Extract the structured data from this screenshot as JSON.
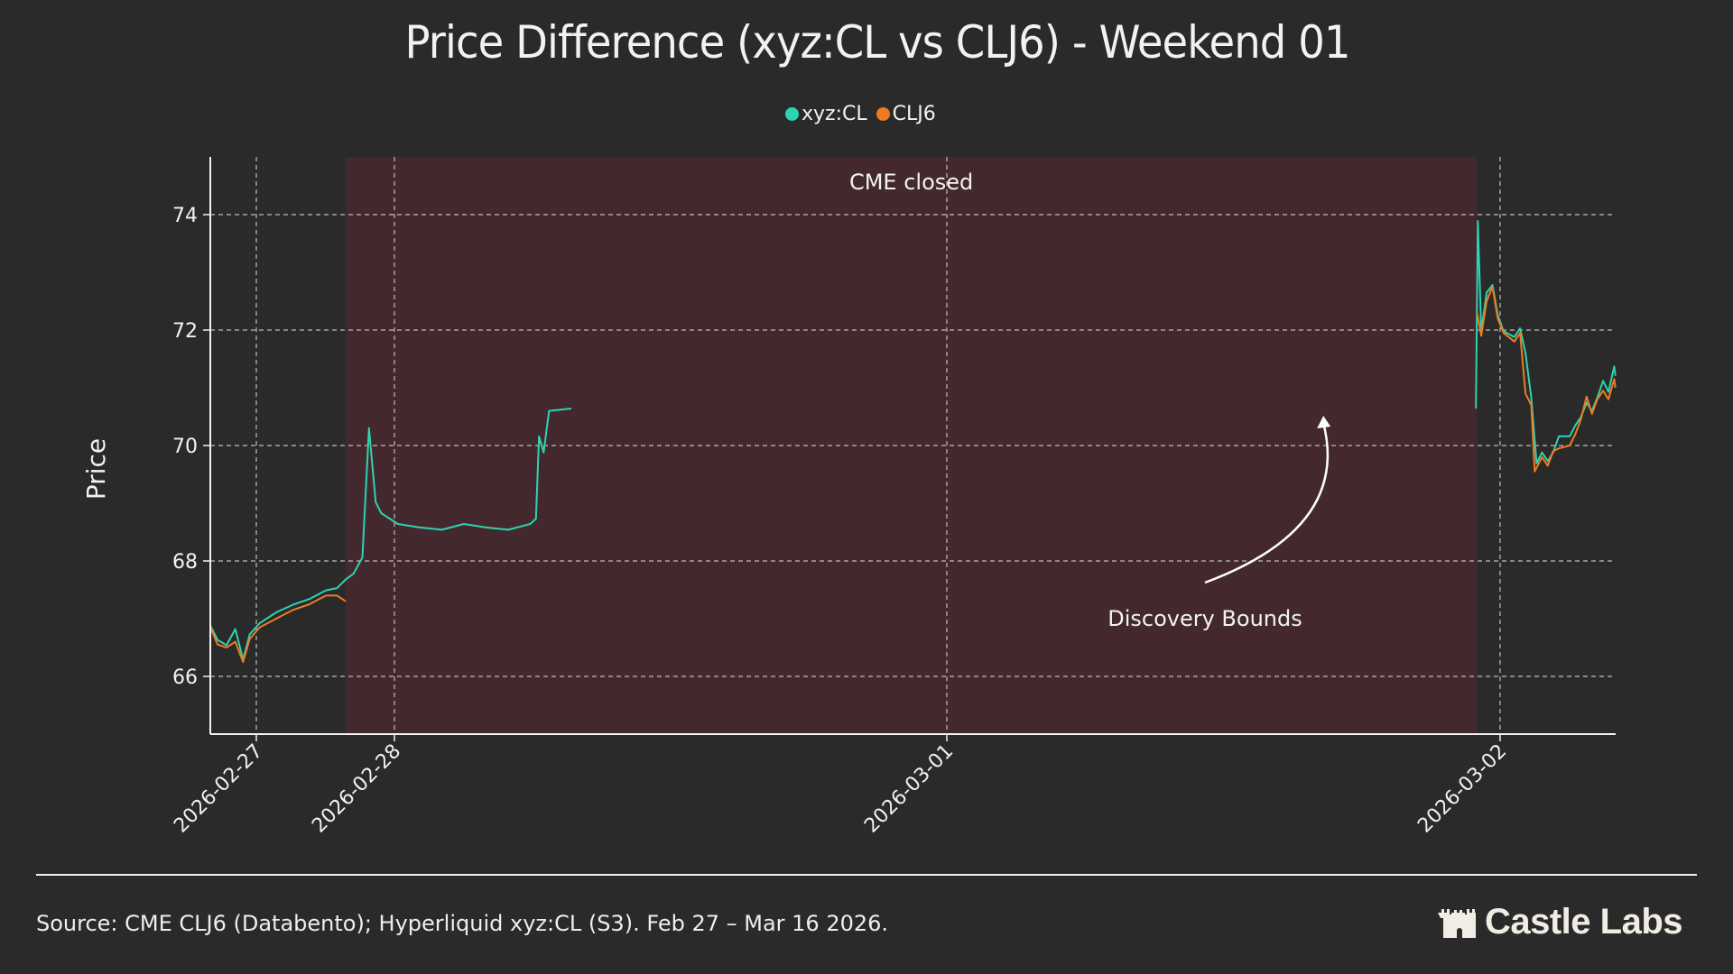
{
  "colors": {
    "background": "#2a2a2a",
    "xyz_cl": "#2ed3b0",
    "clj6": "#f07a22",
    "closed_shade": "#43292d",
    "grid": "#bdbdbd"
  },
  "chart_data": {
    "type": "line",
    "title": "Price Difference (xyz:CL vs CLJ6) - Weekend 01",
    "xlabel": "",
    "ylabel": "Price",
    "ylim": [
      65,
      75
    ],
    "xlim": [
      "2026-02-26T16:00",
      "2026-03-02T05:00"
    ],
    "yticks": [
      66,
      68,
      70,
      72,
      74
    ],
    "xticks": [
      "2026-02-27",
      "2026-02-28",
      "2026-03-01",
      "2026-03-02"
    ],
    "grid": true,
    "legend_position": "top-center",
    "shaded_regions": [
      {
        "label": "CME closed",
        "start": "2026-02-27T15:30",
        "end": "2026-03-01T23:00"
      }
    ],
    "annotations": [
      {
        "text": "Discovery Bounds",
        "target": [
          "2026-03-01T16:20",
          70.64
        ]
      }
    ],
    "series": [
      {
        "name": "xyz:CL",
        "color": "#2ed3b0",
        "points": [
          [
            "2026-02-26T16:00",
            66.88
          ],
          [
            "2026-02-26T17:17",
            66.63
          ],
          [
            "2026-02-26T18:49",
            66.54
          ],
          [
            "2026-02-26T20:21",
            66.82
          ],
          [
            "2026-02-26T21:42",
            66.29
          ],
          [
            "2026-02-26T22:51",
            66.73
          ],
          [
            "2026-02-27T00:35",
            66.92
          ],
          [
            "2026-02-27T03:27",
            67.11
          ],
          [
            "2026-02-27T06:20",
            67.24
          ],
          [
            "2026-02-27T09:13",
            67.34
          ],
          [
            "2026-02-27T12:06",
            67.49
          ],
          [
            "2026-02-27T14:01",
            67.53
          ],
          [
            "2026-02-27T15:33",
            67.68
          ],
          [
            "2026-02-27T16:54",
            67.78
          ],
          [
            "2026-02-27T18:26",
            68.06
          ],
          [
            "2026-02-27T19:35",
            70.3
          ],
          [
            "2026-02-27T20:44",
            69.02
          ],
          [
            "2026-02-27T21:42",
            68.83
          ],
          [
            "2026-02-28T00:09",
            68.64
          ],
          [
            "2026-02-28T01:06",
            68.58
          ],
          [
            "2026-02-28T02:04",
            68.54
          ],
          [
            "2026-02-28T03:01",
            68.64
          ],
          [
            "2026-02-28T03:59",
            68.58
          ],
          [
            "2026-02-28T04:57",
            68.54
          ],
          [
            "2026-02-28T05:54",
            68.64
          ],
          [
            "2026-02-28T06:09",
            68.73
          ],
          [
            "2026-02-28T06:17",
            70.16
          ],
          [
            "2026-02-28T06:29",
            69.88
          ],
          [
            "2026-02-28T06:43",
            70.6
          ],
          [
            "2026-02-28T07:41",
            70.64
          ],
          [
            "2026-03-01T22:57",
            70.64
          ],
          [
            "2026-03-01T23:02",
            73.89
          ],
          [
            "2026-03-01T23:11",
            71.98
          ],
          [
            "2026-03-01T23:25",
            72.65
          ],
          [
            "2026-03-01T23:40",
            72.78
          ],
          [
            "2026-03-01T23:54",
            72.26
          ],
          [
            "2026-03-02T00:09",
            71.98
          ],
          [
            "2026-03-02T00:37",
            71.88
          ],
          [
            "2026-03-02T00:52",
            72.03
          ],
          [
            "2026-03-02T01:06",
            71.6
          ],
          [
            "2026-03-02T01:21",
            70.83
          ],
          [
            "2026-03-02T01:35",
            69.69
          ],
          [
            "2026-03-02T01:49",
            69.88
          ],
          [
            "2026-03-02T02:04",
            69.73
          ],
          [
            "2026-03-02T02:18",
            69.88
          ],
          [
            "2026-03-02T02:33",
            70.16
          ],
          [
            "2026-03-02T03:01",
            70.16
          ],
          [
            "2026-03-02T03:16",
            70.35
          ],
          [
            "2026-03-02T03:30",
            70.49
          ],
          [
            "2026-03-02T03:45",
            70.74
          ],
          [
            "2026-03-02T03:59",
            70.6
          ],
          [
            "2026-03-02T04:13",
            70.83
          ],
          [
            "2026-03-02T04:28",
            71.12
          ],
          [
            "2026-03-02T04:42",
            70.93
          ],
          [
            "2026-03-02T04:57",
            71.37
          ],
          [
            "2026-03-02T05:00",
            71.21
          ]
        ]
      },
      {
        "name": "CLJ6",
        "color": "#f07a22",
        "points": [
          [
            "2026-02-26T16:00",
            66.85
          ],
          [
            "2026-02-26T17:17",
            66.55
          ],
          [
            "2026-02-26T18:49",
            66.5
          ],
          [
            "2026-02-26T20:21",
            66.6
          ],
          [
            "2026-02-26T21:42",
            66.25
          ],
          [
            "2026-02-26T22:51",
            66.65
          ],
          [
            "2026-02-27T00:35",
            66.85
          ],
          [
            "2026-02-27T03:27",
            67.0
          ],
          [
            "2026-02-27T06:20",
            67.15
          ],
          [
            "2026-02-27T09:13",
            67.25
          ],
          [
            "2026-02-27T12:06",
            67.4
          ],
          [
            "2026-02-27T14:01",
            67.4
          ],
          [
            "2026-02-27T15:33",
            67.3
          ],
          [
            "2026-03-01T23:00",
            72.3
          ],
          [
            "2026-03-01T23:11",
            71.9
          ],
          [
            "2026-03-01T23:25",
            72.5
          ],
          [
            "2026-03-01T23:40",
            72.75
          ],
          [
            "2026-03-01T23:54",
            72.2
          ],
          [
            "2026-03-02T00:09",
            71.95
          ],
          [
            "2026-03-02T00:37",
            71.8
          ],
          [
            "2026-03-02T00:52",
            71.95
          ],
          [
            "2026-03-02T01:06",
            70.9
          ],
          [
            "2026-03-02T01:21",
            70.7
          ],
          [
            "2026-03-02T01:30",
            69.55
          ],
          [
            "2026-03-02T01:49",
            69.8
          ],
          [
            "2026-03-02T02:04",
            69.65
          ],
          [
            "2026-03-02T02:18",
            69.9
          ],
          [
            "2026-03-02T02:33",
            69.95
          ],
          [
            "2026-03-02T03:01",
            70.0
          ],
          [
            "2026-03-02T03:16",
            70.2
          ],
          [
            "2026-03-02T03:30",
            70.45
          ],
          [
            "2026-03-02T03:45",
            70.85
          ],
          [
            "2026-03-02T03:59",
            70.55
          ],
          [
            "2026-03-02T04:13",
            70.8
          ],
          [
            "2026-03-02T04:28",
            70.95
          ],
          [
            "2026-03-02T04:42",
            70.8
          ],
          [
            "2026-03-02T04:57",
            71.15
          ],
          [
            "2026-03-02T05:00",
            71.0
          ]
        ]
      }
    ]
  },
  "footer": {
    "source": "Source: CME CLJ6 (Databento); Hyperliquid xyz:CL (S3). Feb 27 – Mar 16 2026.",
    "logo_text": "Castle Labs"
  }
}
